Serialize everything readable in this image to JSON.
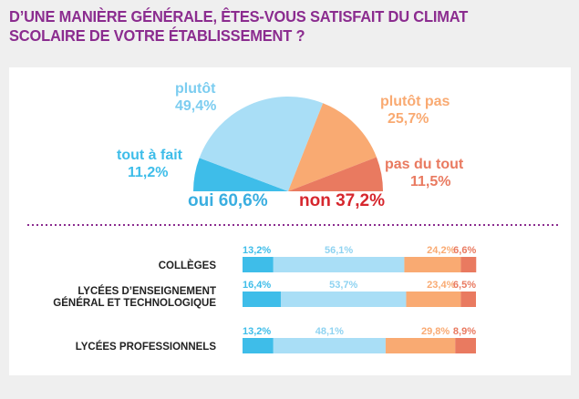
{
  "title": "D’UNE MANIÈRE GÉNÉRALE, ÊTES-VOUS SATISFAIT DU CLIMAT SCOLAIRE DE VOTRE ÉTABLISSEMENT ?",
  "colors": {
    "tout_a_fait": "#3ebde9",
    "plutot": "#a9def6",
    "plutot_pas": "#f9aa72",
    "pas_du_tout": "#e97a60",
    "oui": "#3aaee0",
    "non": "#d6272e",
    "title": "#8b2c8f",
    "separator": "#8b2c8f"
  },
  "chart_data": [
    {
      "type": "pie",
      "subtype": "half-donut",
      "slices": [
        {
          "name": "tout à fait",
          "value": 11.2,
          "label": "11,2%",
          "color": "#3ebde9"
        },
        {
          "name": "plutôt",
          "value": 49.4,
          "label": "49,4%",
          "color": "#a9def6"
        },
        {
          "name": "plutôt pas",
          "value": 25.7,
          "label": "25,7%",
          "color": "#f9aa72"
        },
        {
          "name": "pas du tout",
          "value": 11.5,
          "label": "11,5%",
          "color": "#e97a60"
        }
      ],
      "totals": [
        {
          "label": "oui 60,6%",
          "value": 60.6,
          "color": "#3aaee0"
        },
        {
          "label": "non 37,2%",
          "value": 37.2,
          "color": "#d6272e"
        }
      ]
    },
    {
      "type": "bar",
      "subtype": "stacked-horizontal-100",
      "categories": [
        "COLLÈGES",
        "LYCÉES D’ENSEIGNEMENT\nGÉNÉRAL ET TECHNOLOGIQUE",
        "LYCÉES PROFESSIONNELS"
      ],
      "series": [
        {
          "name": "tout à fait",
          "color": "#3ebde9",
          "values": [
            13.2,
            16.4,
            13.2
          ],
          "labels": [
            "13,2%",
            "16,4%",
            "13,2%"
          ]
        },
        {
          "name": "plutôt",
          "color": "#a9def6",
          "values": [
            56.1,
            53.7,
            48.1
          ],
          "labels": [
            "56,1%",
            "53,7%",
            "48,1%"
          ]
        },
        {
          "name": "plutôt pas",
          "color": "#f9aa72",
          "values": [
            24.2,
            23.4,
            29.8
          ],
          "labels": [
            "24,2%",
            "23,4%",
            "29,8%"
          ]
        },
        {
          "name": "pas du tout",
          "color": "#e97a60",
          "values": [
            6.6,
            6.5,
            8.9
          ],
          "labels": [
            "6,6%",
            "6,5%",
            "8,9%"
          ]
        }
      ]
    }
  ]
}
